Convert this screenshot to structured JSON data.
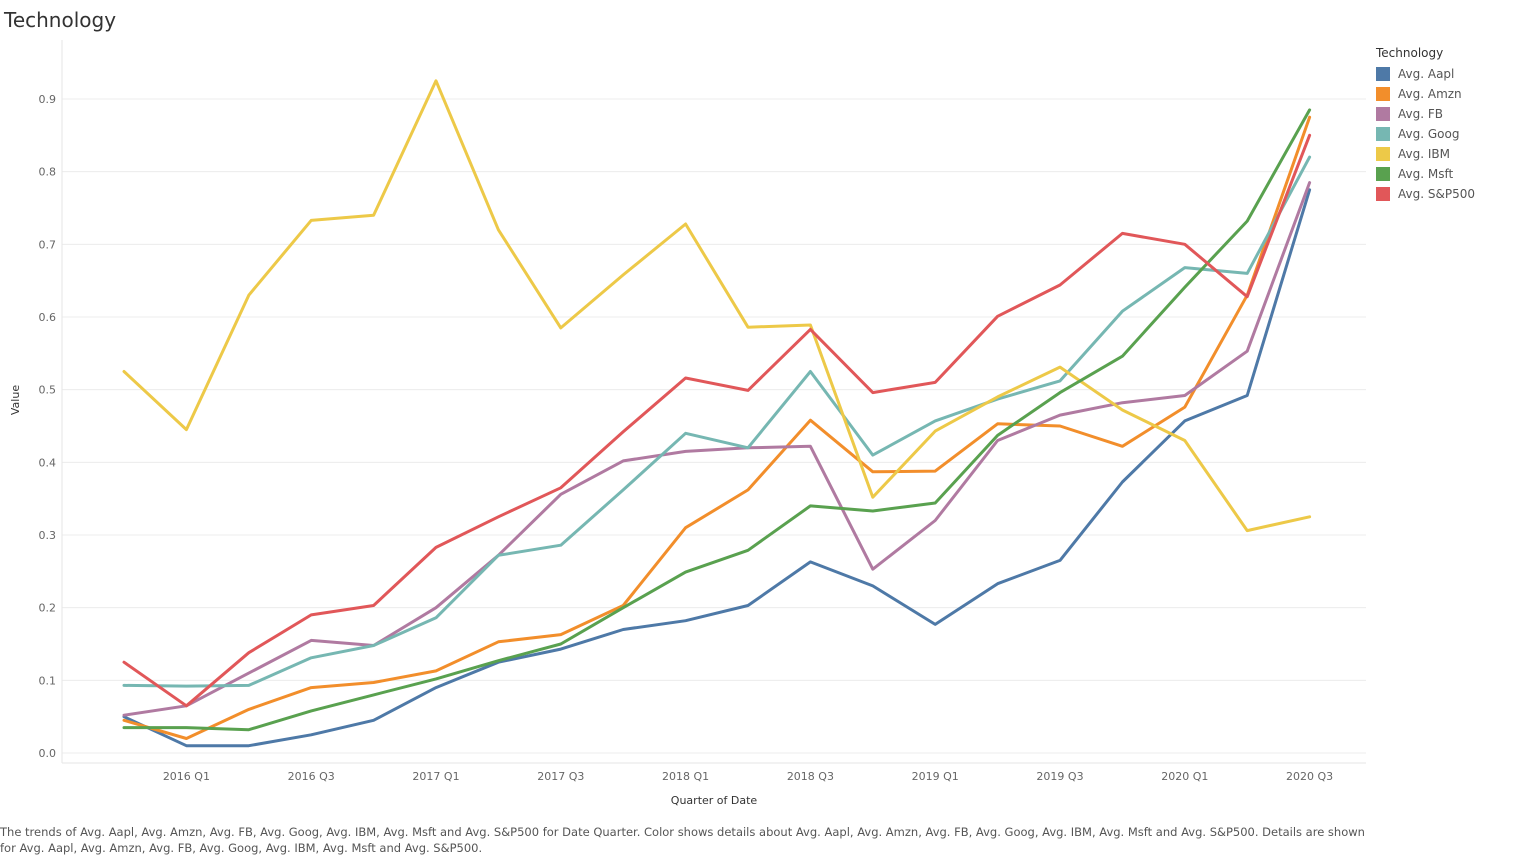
{
  "title": "Technology",
  "caption": "The trends of Avg. Aapl, Avg. Amzn, Avg. FB, Avg. Goog, Avg. IBM, Avg. Msft and Avg. S&P500 for Date Quarter.  Color shows details about Avg. Aapl, Avg. Amzn, Avg. FB, Avg. Goog, Avg. IBM, Avg. Msft and Avg. S&P500.  Details are shown for Avg. Aapl, Avg. Amzn, Avg. FB, Avg. Goog, Avg. IBM, Avg. Msft and Avg. S&P500.",
  "legend": {
    "title": "Technology",
    "placement": "right"
  },
  "chart_data": {
    "type": "line",
    "title": "Technology",
    "xlabel": "Quarter of Date",
    "ylabel": "Value",
    "ylim": [
      0.0,
      0.95
    ],
    "yticks": [
      "0.0",
      "0.1",
      "0.2",
      "0.3",
      "0.4",
      "0.5",
      "0.6",
      "0.7",
      "0.8",
      "0.9"
    ],
    "x": [
      "2015 Q4",
      "2016 Q1",
      "2016 Q2",
      "2016 Q3",
      "2016 Q4",
      "2017 Q1",
      "2017 Q2",
      "2017 Q3",
      "2017 Q4",
      "2018 Q1",
      "2018 Q2",
      "2018 Q3",
      "2018 Q4",
      "2019 Q1",
      "2019 Q2",
      "2019 Q3",
      "2019 Q4",
      "2020 Q1",
      "2020 Q2",
      "2020 Q3"
    ],
    "xtick_labels": [
      "",
      "2016 Q1",
      "",
      "2016 Q3",
      "",
      "2017 Q1",
      "",
      "2017 Q3",
      "",
      "2018 Q1",
      "",
      "2018 Q3",
      "",
      "2019 Q1",
      "",
      "2019 Q3",
      "",
      "2020 Q1",
      "",
      "2020 Q3"
    ],
    "grid": "horizontal",
    "series": [
      {
        "name": "Avg. Aapl",
        "color": "#4e79a7",
        "values": [
          0.05,
          0.01,
          0.01,
          0.025,
          0.045,
          0.09,
          0.125,
          0.143,
          0.17,
          0.182,
          0.203,
          0.263,
          0.23,
          0.177,
          0.233,
          0.265,
          0.373,
          0.457,
          0.492,
          0.775
        ]
      },
      {
        "name": "Avg. Amzn",
        "color": "#f28e2b",
        "values": [
          0.045,
          0.02,
          0.06,
          0.09,
          0.097,
          0.113,
          0.153,
          0.163,
          0.203,
          0.31,
          0.362,
          0.458,
          0.387,
          0.388,
          0.453,
          0.45,
          0.422,
          0.476,
          0.63,
          0.875
        ]
      },
      {
        "name": "Avg. FB",
        "color": "#b07aa1",
        "values": [
          0.052,
          0.065,
          0.11,
          0.155,
          0.148,
          0.2,
          0.272,
          0.356,
          0.402,
          0.415,
          0.42,
          0.422,
          0.253,
          0.32,
          0.43,
          0.465,
          0.482,
          0.492,
          0.553,
          0.785
        ]
      },
      {
        "name": "Avg. Goog",
        "color": "#76b7b2",
        "values": [
          0.093,
          0.092,
          0.093,
          0.131,
          0.148,
          0.186,
          0.272,
          0.286,
          0.362,
          0.44,
          0.42,
          0.525,
          0.41,
          0.457,
          0.487,
          0.512,
          0.608,
          0.668,
          0.66,
          0.82
        ]
      },
      {
        "name": "Avg. IBM",
        "color": "#edc948",
        "values": [
          0.525,
          0.445,
          0.63,
          0.733,
          0.74,
          0.925,
          0.72,
          0.585,
          0.658,
          0.728,
          0.586,
          0.589,
          0.352,
          0.443,
          0.49,
          0.531,
          0.472,
          0.43,
          0.306,
          0.325
        ]
      },
      {
        "name": "Avg. Msft",
        "color": "#59a14f",
        "values": [
          0.035,
          0.035,
          0.032,
          0.058,
          0.08,
          0.102,
          0.127,
          0.15,
          0.2,
          0.249,
          0.279,
          0.34,
          0.333,
          0.344,
          0.437,
          0.496,
          0.546,
          0.641,
          0.732,
          0.885
        ]
      },
      {
        "name": "Avg. S&P500",
        "color": "#e15759",
        "values": [
          0.125,
          0.065,
          0.138,
          0.19,
          0.203,
          0.283,
          0.325,
          0.365,
          0.442,
          0.516,
          0.499,
          0.583,
          0.496,
          0.51,
          0.601,
          0.644,
          0.715,
          0.7,
          0.628,
          0.85
        ]
      }
    ]
  }
}
